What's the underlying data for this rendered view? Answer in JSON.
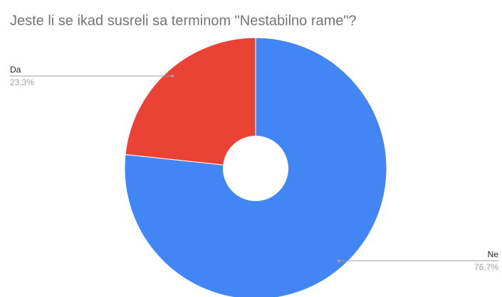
{
  "chart_data": {
    "type": "pie",
    "title": "Jeste li se ikad susreli sa terminom \"Nestabilno rame\"?",
    "categories": [
      "Ne",
      "Da"
    ],
    "values": [
      76.7,
      23.3
    ],
    "value_labels": [
      "76,7%",
      "23,3%"
    ],
    "colors": [
      "#4285f4",
      "#ea4335"
    ],
    "donut": true
  }
}
